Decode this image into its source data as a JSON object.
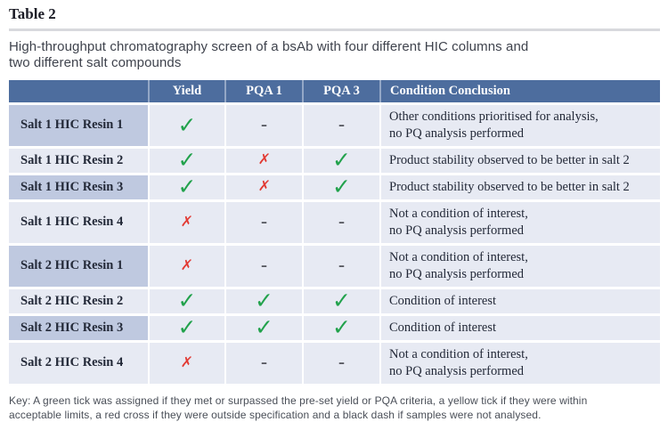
{
  "title": "Table 2",
  "caption": "High-throughput chromatography screen of a bsAb with four different HIC columns and\ntwo different salt compounds",
  "table": {
    "headers": {
      "label": "",
      "yield": "Yield",
      "pqa1": "PQA 1",
      "pqa3": "PQA 3",
      "conclusion": "Condition Conclusion"
    },
    "rows": [
      {
        "label": "Salt 1 HIC Resin 1",
        "yield": {
          "glyph": "✓",
          "type": "tick"
        },
        "pqa1": {
          "glyph": "–",
          "type": "dash"
        },
        "pqa3": {
          "glyph": "–",
          "type": "dash"
        },
        "conclusion": "Other conditions prioritised for analysis,\nno PQ analysis performed"
      },
      {
        "label": "Salt 1 HIC Resin 2",
        "yield": {
          "glyph": "✓",
          "type": "tick"
        },
        "pqa1": {
          "glyph": "✗",
          "type": "cross"
        },
        "pqa3": {
          "glyph": "✓",
          "type": "tick"
        },
        "conclusion": "Product stability observed to be better in salt 2"
      },
      {
        "label": "Salt 1 HIC Resin 3",
        "yield": {
          "glyph": "✓",
          "type": "tick"
        },
        "pqa1": {
          "glyph": "✗",
          "type": "cross"
        },
        "pqa3": {
          "glyph": "✓",
          "type": "tick"
        },
        "conclusion": "Product stability observed to be better in salt 2"
      },
      {
        "label": "Salt 1 HIC Resin 4",
        "yield": {
          "glyph": "✗",
          "type": "cross"
        },
        "pqa1": {
          "glyph": "–",
          "type": "dash"
        },
        "pqa3": {
          "glyph": "–",
          "type": "dash"
        },
        "conclusion": "Not a condition of interest,\nno PQ analysis performed"
      },
      {
        "label": "Salt 2 HIC Resin 1",
        "yield": {
          "glyph": "✗",
          "type": "cross"
        },
        "pqa1": {
          "glyph": "–",
          "type": "dash"
        },
        "pqa3": {
          "glyph": "–",
          "type": "dash"
        },
        "conclusion": "Not a condition of interest,\nno PQ analysis performed"
      },
      {
        "label": "Salt 2 HIC Resin 2",
        "yield": {
          "glyph": "✓",
          "type": "tick"
        },
        "pqa1": {
          "glyph": "✓",
          "type": "tick"
        },
        "pqa3": {
          "glyph": "✓",
          "type": "tick"
        },
        "conclusion": "Condition of interest"
      },
      {
        "label": "Salt 2 HIC Resin 3",
        "yield": {
          "glyph": "✓",
          "type": "tick"
        },
        "pqa1": {
          "glyph": "✓",
          "type": "tick"
        },
        "pqa3": {
          "glyph": "✓",
          "type": "tick"
        },
        "conclusion": "Condition of interest"
      },
      {
        "label": "Salt 2 HIC Resin 4",
        "yield": {
          "glyph": "✗",
          "type": "cross"
        },
        "pqa1": {
          "glyph": "–",
          "type": "dash"
        },
        "pqa3": {
          "glyph": "–",
          "type": "dash"
        },
        "conclusion": "Not a condition of interest,\nno PQ analysis performed"
      }
    ]
  },
  "key": "Key: A green tick was assigned if they met or surpassed the pre-set yield or PQA criteria, a yellow tick if they were within\nacceptable limits, a red cross if they were outside specification and a black dash if samples were not analysed.",
  "colors": {
    "header_bg": "#4d6d9e",
    "label_shaded": "#bfc9e0",
    "cell_bg": "#e7eaf3",
    "tick_green": "#22a24c",
    "cross_red": "#e23a33",
    "dash_gray": "#55565e"
  }
}
